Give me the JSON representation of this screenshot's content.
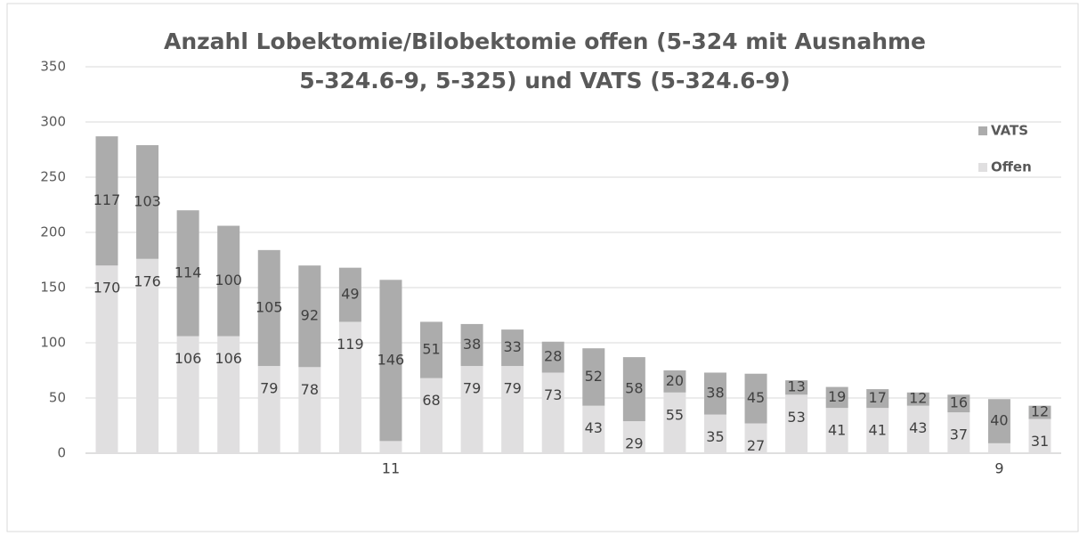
{
  "chart_data": {
    "type": "stacked-bar",
    "title": [
      "Anzahl Lobektomie/Bilobektomie offen (5-324 mit Ausnahme",
      "5-324.6-9, 5-325)  und VATS (5-324.6-9)"
    ],
    "categories": [
      null,
      null,
      null,
      null,
      null,
      null,
      null,
      null,
      null,
      null,
      null,
      null,
      null,
      null,
      null,
      null,
      null,
      null,
      null,
      null,
      null,
      null,
      null,
      null
    ],
    "series": [
      {
        "name": "Offen",
        "color": "#e0dfe0",
        "values": [
          170,
          176,
          106,
          106,
          79,
          78,
          119,
          11,
          68,
          79,
          79,
          73,
          43,
          29,
          55,
          35,
          27,
          53,
          41,
          41,
          43,
          37,
          9,
          31
        ]
      },
      {
        "name": "VATS",
        "color": "#acacac",
        "values": [
          117,
          103,
          114,
          100,
          105,
          92,
          49,
          146,
          51,
          38,
          33,
          28,
          52,
          58,
          20,
          38,
          45,
          13,
          19,
          17,
          12,
          16,
          40,
          12
        ]
      }
    ],
    "ylim": [
      0,
      350
    ],
    "yticks": [
      0,
      50,
      100,
      150,
      200,
      250,
      300,
      350
    ],
    "grid": true,
    "legend": "right"
  }
}
